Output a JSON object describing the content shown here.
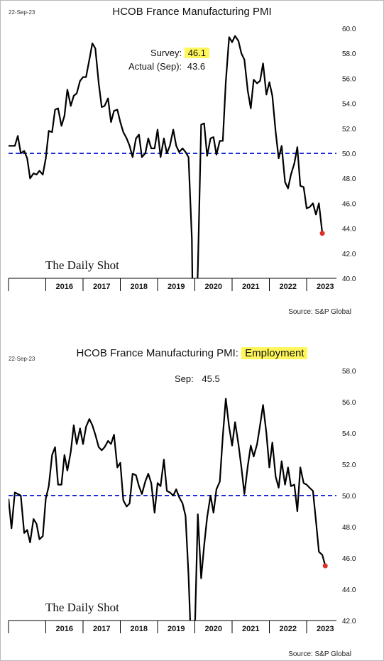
{
  "chart_data": [
    {
      "type": "line",
      "date_stamp": "22-Sep-23",
      "title": "HCOB France Manufacturing PMI",
      "title_highlight": "",
      "annotation": {
        "survey_label": "Survey:",
        "survey_value": "46.1",
        "actual_label": "Actual (Sep):",
        "actual_value": "43.6"
      },
      "watermark": "The Daily Shot",
      "source": "Source: S&P Global",
      "x_ticks": [
        "2016",
        "2017",
        "2018",
        "2019",
        "2020",
        "2021",
        "2022",
        "2023"
      ],
      "y_ticks": [
        "40.0",
        "42.0",
        "44.0",
        "46.0",
        "48.0",
        "50.0",
        "52.0",
        "54.0",
        "56.0",
        "58.0",
        "60.0"
      ],
      "ylim": [
        40,
        60
      ],
      "xlim": [
        2015.0,
        2023.8
      ],
      "reference_line": 50,
      "colors": {
        "line": "#000000",
        "reference": "#1f2fd6",
        "last_point": "#e0302a",
        "highlight": "#fff75a"
      },
      "series": [
        {
          "values": [
            [
              2015.0,
              50.6
            ],
            [
              2015.17,
              50.6
            ],
            [
              2015.25,
              51.4
            ],
            [
              2015.33,
              50.0
            ],
            [
              2015.42,
              50.2
            ],
            [
              2015.5,
              49.6
            ],
            [
              2015.58,
              48.0
            ],
            [
              2015.67,
              48.4
            ],
            [
              2015.75,
              48.3
            ],
            [
              2015.83,
              48.6
            ],
            [
              2015.92,
              48.3
            ],
            [
              2016.0,
              49.6
            ],
            [
              2016.08,
              51.8
            ],
            [
              2016.17,
              51.7
            ],
            [
              2016.25,
              53.5
            ],
            [
              2016.33,
              53.6
            ],
            [
              2016.42,
              52.2
            ],
            [
              2016.5,
              53.0
            ],
            [
              2016.58,
              55.1
            ],
            [
              2016.67,
              53.8
            ],
            [
              2016.75,
              54.6
            ],
            [
              2016.83,
              54.8
            ],
            [
              2016.92,
              55.8
            ],
            [
              2017.0,
              56.1
            ],
            [
              2017.08,
              56.1
            ],
            [
              2017.17,
              57.5
            ],
            [
              2017.25,
              58.8
            ],
            [
              2017.33,
              58.4
            ],
            [
              2017.42,
              55.6
            ],
            [
              2017.5,
              53.7
            ],
            [
              2017.58,
              53.8
            ],
            [
              2017.67,
              54.4
            ],
            [
              2017.75,
              52.5
            ],
            [
              2017.83,
              53.4
            ],
            [
              2017.92,
              53.5
            ],
            [
              2018.0,
              52.5
            ],
            [
              2018.08,
              51.7
            ],
            [
              2018.17,
              51.2
            ],
            [
              2018.25,
              50.6
            ],
            [
              2018.33,
              49.7
            ],
            [
              2018.42,
              51.2
            ],
            [
              2018.5,
              51.5
            ],
            [
              2018.58,
              49.7
            ],
            [
              2018.67,
              50.0
            ],
            [
              2018.75,
              51.2
            ],
            [
              2018.83,
              50.4
            ],
            [
              2018.92,
              50.4
            ],
            [
              2019.0,
              51.9
            ],
            [
              2019.08,
              49.7
            ],
            [
              2019.17,
              51.2
            ],
            [
              2019.25,
              50.0
            ],
            [
              2019.33,
              50.6
            ],
            [
              2019.42,
              51.9
            ],
            [
              2019.5,
              50.6
            ],
            [
              2019.58,
              50.1
            ],
            [
              2019.67,
              50.4
            ],
            [
              2019.75,
              50.1
            ],
            [
              2019.83,
              49.7
            ],
            [
              2019.92,
              43.2
            ],
            [
              2019.97,
              31.5
            ],
            [
              2020.08,
              40.6
            ],
            [
              2020.17,
              52.3
            ],
            [
              2020.25,
              52.4
            ],
            [
              2020.33,
              49.8
            ],
            [
              2020.42,
              51.2
            ],
            [
              2020.5,
              51.3
            ],
            [
              2020.58,
              49.9
            ],
            [
              2020.67,
              51.0
            ],
            [
              2020.75,
              51.0
            ],
            [
              2020.83,
              55.7
            ],
            [
              2020.92,
              59.3
            ],
            [
              2021.0,
              58.9
            ],
            [
              2021.08,
              59.4
            ],
            [
              2021.17,
              59.0
            ],
            [
              2021.25,
              58.0
            ],
            [
              2021.33,
              57.5
            ],
            [
              2021.42,
              55.0
            ],
            [
              2021.5,
              53.6
            ],
            [
              2021.58,
              55.9
            ],
            [
              2021.67,
              55.6
            ],
            [
              2021.75,
              55.8
            ],
            [
              2021.83,
              57.2
            ],
            [
              2021.92,
              54.7
            ],
            [
              2022.0,
              55.7
            ],
            [
              2022.08,
              54.6
            ],
            [
              2022.17,
              51.7
            ],
            [
              2022.25,
              49.6
            ],
            [
              2022.33,
              50.6
            ],
            [
              2022.42,
              47.7
            ],
            [
              2022.5,
              47.2
            ],
            [
              2022.58,
              48.3
            ],
            [
              2022.67,
              49.2
            ],
            [
              2022.75,
              50.5
            ],
            [
              2022.83,
              47.4
            ],
            [
              2022.92,
              47.3
            ],
            [
              2023.0,
              45.6
            ],
            [
              2023.08,
              45.7
            ],
            [
              2023.17,
              46.0
            ],
            [
              2023.25,
              45.1
            ],
            [
              2023.33,
              46.0
            ],
            [
              2023.42,
              43.6
            ]
          ]
        }
      ]
    },
    {
      "type": "line",
      "date_stamp": "22-Sep-23",
      "title": "HCOB France Manufacturing PMI: ",
      "title_highlight": "Employment",
      "annotation": {
        "survey_label": "Sep:",
        "survey_value": "45.5",
        "actual_label": "",
        "actual_value": ""
      },
      "watermark": "The Daily Shot",
      "source": "Source: S&P Global",
      "x_ticks": [
        "2016",
        "2017",
        "2018",
        "2019",
        "2020",
        "2021",
        "2022",
        "2023"
      ],
      "y_ticks": [
        "42.0",
        "44.0",
        "46.0",
        "48.0",
        "50.0",
        "52.0",
        "54.0",
        "56.0",
        "58.0"
      ],
      "ylim": [
        42,
        58
      ],
      "xlim": [
        2015.0,
        2023.8
      ],
      "reference_line": 50,
      "colors": {
        "line": "#000000",
        "reference": "#1f2fd6",
        "last_point": "#e0302a",
        "highlight": "#fff75a"
      },
      "series": [
        {
          "values": [
            [
              2015.0,
              49.8
            ],
            [
              2015.08,
              47.9
            ],
            [
              2015.17,
              50.2
            ],
            [
              2015.33,
              50.0
            ],
            [
              2015.42,
              47.6
            ],
            [
              2015.5,
              47.8
            ],
            [
              2015.58,
              47.0
            ],
            [
              2015.67,
              48.5
            ],
            [
              2015.75,
              48.2
            ],
            [
              2015.83,
              47.2
            ],
            [
              2015.92,
              47.4
            ],
            [
              2016.0,
              49.8
            ],
            [
              2016.08,
              50.6
            ],
            [
              2016.17,
              52.6
            ],
            [
              2016.25,
              53.1
            ],
            [
              2016.33,
              50.7
            ],
            [
              2016.42,
              50.7
            ],
            [
              2016.5,
              52.6
            ],
            [
              2016.58,
              51.6
            ],
            [
              2016.67,
              52.8
            ],
            [
              2016.75,
              54.5
            ],
            [
              2016.83,
              53.3
            ],
            [
              2016.92,
              54.3
            ],
            [
              2017.0,
              53.3
            ],
            [
              2017.08,
              54.4
            ],
            [
              2017.17,
              54.9
            ],
            [
              2017.25,
              54.5
            ],
            [
              2017.33,
              53.9
            ],
            [
              2017.42,
              53.1
            ],
            [
              2017.5,
              52.9
            ],
            [
              2017.58,
              53.1
            ],
            [
              2017.67,
              53.5
            ],
            [
              2017.75,
              53.3
            ],
            [
              2017.83,
              53.9
            ],
            [
              2017.92,
              51.8
            ],
            [
              2018.0,
              52.1
            ],
            [
              2018.08,
              49.7
            ],
            [
              2018.17,
              49.3
            ],
            [
              2018.25,
              49.5
            ],
            [
              2018.33,
              51.4
            ],
            [
              2018.42,
              51.3
            ],
            [
              2018.5,
              50.6
            ],
            [
              2018.58,
              50.1
            ],
            [
              2018.67,
              50.9
            ],
            [
              2018.75,
              51.4
            ],
            [
              2018.83,
              50.8
            ],
            [
              2018.92,
              48.9
            ],
            [
              2019.0,
              50.8
            ],
            [
              2019.08,
              50.6
            ],
            [
              2019.17,
              52.3
            ],
            [
              2019.25,
              50.3
            ],
            [
              2019.33,
              50.2
            ],
            [
              2019.42,
              50.0
            ],
            [
              2019.5,
              50.4
            ],
            [
              2019.58,
              49.9
            ],
            [
              2019.67,
              49.5
            ],
            [
              2019.75,
              48.7
            ],
            [
              2019.83,
              44.9
            ],
            [
              2019.92,
              39.0
            ],
            [
              2020.0,
              41.3
            ],
            [
              2020.08,
              48.8
            ],
            [
              2020.17,
              44.7
            ],
            [
              2020.25,
              46.8
            ],
            [
              2020.33,
              48.6
            ],
            [
              2020.42,
              50.0
            ],
            [
              2020.5,
              48.9
            ],
            [
              2020.58,
              50.4
            ],
            [
              2020.67,
              50.9
            ],
            [
              2020.75,
              53.8
            ],
            [
              2020.83,
              56.2
            ],
            [
              2020.92,
              54.4
            ],
            [
              2021.0,
              53.2
            ],
            [
              2021.08,
              54.7
            ],
            [
              2021.17,
              53.3
            ],
            [
              2021.25,
              51.8
            ],
            [
              2021.33,
              50.1
            ],
            [
              2021.42,
              51.9
            ],
            [
              2021.5,
              53.2
            ],
            [
              2021.58,
              52.5
            ],
            [
              2021.67,
              53.3
            ],
            [
              2021.75,
              54.5
            ],
            [
              2021.83,
              55.8
            ],
            [
              2021.92,
              54.0
            ],
            [
              2022.0,
              51.8
            ],
            [
              2022.08,
              53.4
            ],
            [
              2022.17,
              51.2
            ],
            [
              2022.25,
              50.5
            ],
            [
              2022.33,
              52.2
            ],
            [
              2022.42,
              50.7
            ],
            [
              2022.5,
              51.8
            ],
            [
              2022.58,
              50.6
            ],
            [
              2022.67,
              50.7
            ],
            [
              2022.75,
              49.0
            ],
            [
              2022.83,
              51.8
            ],
            [
              2022.92,
              50.8
            ],
            [
              2023.0,
              50.7
            ],
            [
              2023.08,
              50.5
            ],
            [
              2023.17,
              50.3
            ],
            [
              2023.25,
              48.4
            ],
            [
              2023.33,
              46.4
            ],
            [
              2023.42,
              46.2
            ],
            [
              2023.5,
              45.5
            ]
          ]
        }
      ]
    }
  ]
}
